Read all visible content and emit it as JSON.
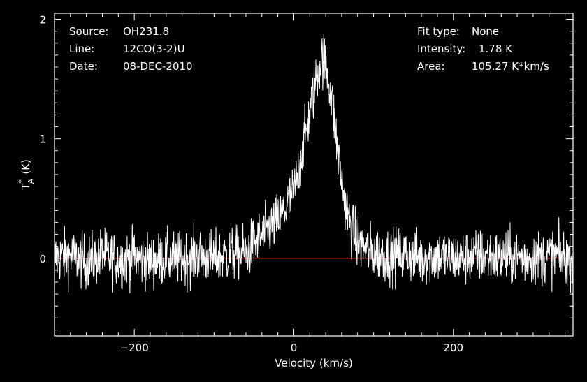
{
  "annotations": {
    "left": [
      {
        "label": "Source:",
        "value": "OH231.8"
      },
      {
        "label": "Line:",
        "value": "12CO(3-2)U"
      },
      {
        "label": "Date:",
        "value": "08-DEC-2010"
      }
    ],
    "right": [
      {
        "label": "Fit type:",
        "value": "None"
      },
      {
        "label": "Intensity:",
        "value": "1.78 K"
      },
      {
        "label": "Area:",
        "value": "105.27 K*km/s"
      }
    ]
  },
  "colors": {
    "background": "#000000",
    "foreground": "#ffffff",
    "baseline": "#d42020"
  },
  "chart_data": {
    "type": "line",
    "xlabel": "Velocity (km/s)",
    "ylabel": "T*A (K)",
    "ylabel_main": "T",
    "ylabel_sup": "*",
    "ylabel_sub": "A",
    "ylabel_unit": "(K)",
    "xlim": [
      -300,
      350
    ],
    "ylim": [
      -0.65,
      2.05
    ],
    "x_ticks": [
      -200,
      0,
      200
    ],
    "x_tick_labels": [
      "−200",
      "0",
      "200"
    ],
    "y_ticks": [
      0,
      1,
      2
    ],
    "y_tick_labels": [
      "0",
      "1",
      "2"
    ],
    "baseline_y": 0,
    "grid": false,
    "series": [
      {
        "x": [
          -300,
          -280,
          -260,
          -240,
          -220,
          -200,
          -180,
          -160,
          -140,
          -120,
          -100,
          -80,
          -60,
          -50,
          -40,
          -30,
          -20,
          -10,
          0,
          5,
          10,
          15,
          20,
          25,
          30,
          35,
          40,
          45,
          50,
          55,
          60,
          65,
          70,
          75,
          80,
          90,
          100,
          120,
          140,
          160,
          180,
          200,
          220,
          240,
          260,
          280,
          300,
          320,
          350
        ],
        "y": [
          0.0,
          0.02,
          -0.03,
          0.03,
          -0.02,
          0.01,
          -0.03,
          0.0,
          -0.01,
          0.02,
          0.0,
          0.03,
          0.05,
          0.12,
          0.18,
          0.25,
          0.32,
          0.42,
          0.56,
          0.7,
          0.88,
          1.05,
          1.22,
          1.4,
          1.55,
          1.68,
          1.63,
          1.45,
          1.2,
          0.9,
          0.65,
          0.45,
          0.3,
          0.2,
          0.14,
          0.08,
          0.05,
          0.02,
          0.03,
          0.0,
          0.02,
          0.0,
          0.01,
          0.02,
          0.0,
          0.01,
          0.0,
          0.02,
          0.0
        ]
      }
    ]
  }
}
